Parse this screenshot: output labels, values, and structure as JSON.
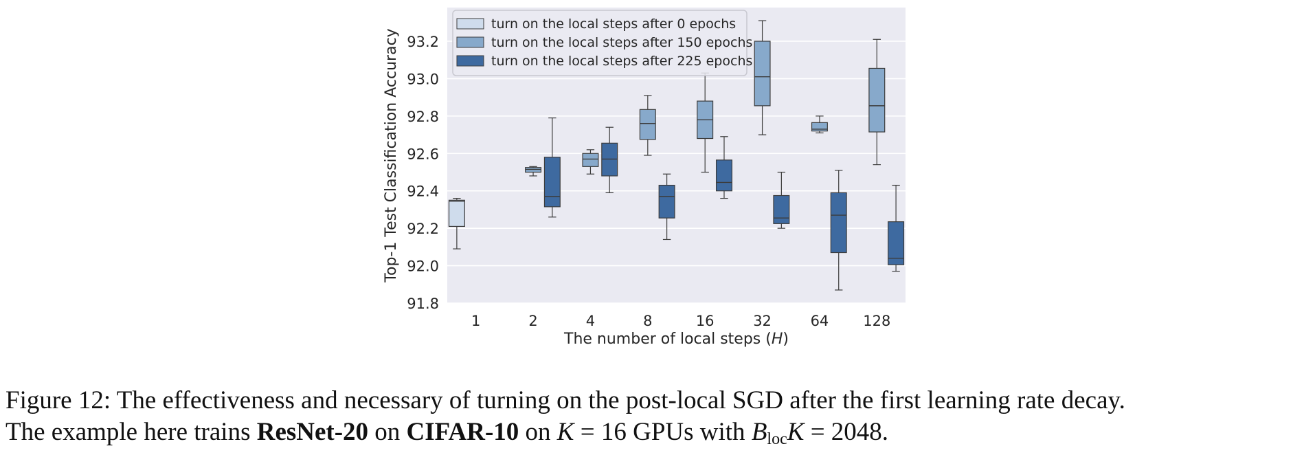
{
  "chart_data": {
    "type": "boxplot",
    "xlabel_prefix": "The number of local steps (",
    "xlabel_var": "H",
    "xlabel_suffix": ")",
    "ylabel": "Top-1 Test Classification Accuracy",
    "ylim": [
      91.8,
      93.38
    ],
    "yticks": [
      "91.8",
      "92.0",
      "92.2",
      "92.4",
      "92.6",
      "92.8",
      "93.0",
      "93.2"
    ],
    "categories": [
      "1",
      "2",
      "4",
      "8",
      "16",
      "32",
      "64",
      "128"
    ],
    "grid": true,
    "legend_position": "top-left",
    "series": [
      {
        "name": "turn on the local steps after 0 epochs",
        "color": "#cfdcec",
        "boxes": [
          {
            "category": "1",
            "min": 92.09,
            "q1": 92.21,
            "median": 92.345,
            "q3": 92.35,
            "max": 92.36
          }
        ]
      },
      {
        "name": "turn on the local steps after 150 epochs",
        "color": "#87a9cb",
        "boxes": [
          {
            "category": "2",
            "min": 92.48,
            "q1": 92.5,
            "median": 92.515,
            "q3": 92.525,
            "max": 92.53
          },
          {
            "category": "4",
            "min": 92.49,
            "q1": 92.53,
            "median": 92.57,
            "q3": 92.6,
            "max": 92.62
          },
          {
            "category": "8",
            "min": 92.59,
            "q1": 92.675,
            "median": 92.76,
            "q3": 92.835,
            "max": 92.91
          },
          {
            "category": "16",
            "min": 92.5,
            "q1": 92.68,
            "median": 92.78,
            "q3": 92.88,
            "max": 93.03
          },
          {
            "category": "32",
            "min": 92.7,
            "q1": 92.855,
            "median": 93.01,
            "q3": 93.2,
            "max": 93.31
          },
          {
            "category": "64",
            "min": 92.71,
            "q1": 92.72,
            "median": 92.73,
            "q3": 92.765,
            "max": 92.8
          },
          {
            "category": "128",
            "min": 92.54,
            "q1": 92.715,
            "median": 92.855,
            "q3": 93.055,
            "max": 93.21
          }
        ]
      },
      {
        "name": "turn on the local steps after 225 epochs",
        "color": "#3e6aa0",
        "boxes": [
          {
            "category": "2",
            "min": 92.26,
            "q1": 92.315,
            "median": 92.37,
            "q3": 92.58,
            "max": 92.79
          },
          {
            "category": "4",
            "min": 92.39,
            "q1": 92.48,
            "median": 92.57,
            "q3": 92.655,
            "max": 92.74
          },
          {
            "category": "8",
            "min": 92.14,
            "q1": 92.255,
            "median": 92.37,
            "q3": 92.43,
            "max": 92.49
          },
          {
            "category": "16",
            "min": 92.36,
            "q1": 92.4,
            "median": 92.445,
            "q3": 92.565,
            "max": 92.69
          },
          {
            "category": "32",
            "min": 92.2,
            "q1": 92.225,
            "median": 92.255,
            "q3": 92.375,
            "max": 92.5
          },
          {
            "category": "64",
            "min": 91.87,
            "q1": 92.07,
            "median": 92.27,
            "q3": 92.39,
            "max": 92.51
          },
          {
            "category": "128",
            "min": 91.97,
            "q1": 92.005,
            "median": 92.04,
            "q3": 92.235,
            "max": 92.43
          }
        ]
      }
    ]
  },
  "caption": {
    "lead": "Figure 12:  The effectiveness and necessary of turning on the post-local SGD after the first learning rate decay.",
    "line2_a": "The example here trains ",
    "model": "ResNet-20",
    "line2_b": " on ",
    "dataset": "CIFAR-10",
    "line2_c": " on ",
    "k_var": "K",
    "k_eq": " = 16 GPUs with ",
    "b_var": "B",
    "b_sub": "loc",
    "b_k": "K",
    "b_eq": " = 2048."
  },
  "colors": {
    "plot_background": "#eaeaf2",
    "grid": "#ffffff",
    "box_edge": "#3c3c3c"
  }
}
